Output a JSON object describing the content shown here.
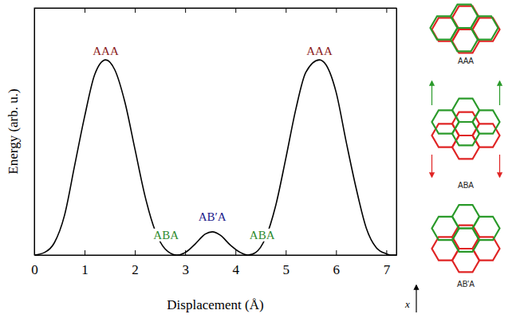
{
  "chart_data": {
    "type": "line",
    "x_label": "Displacement (Å)",
    "y_label": "Energy (arb. u.)",
    "xlim": [
      0,
      7.2
    ],
    "ylim": [
      0,
      1
    ],
    "xticks": [
      0,
      1,
      2,
      3,
      4,
      5,
      6,
      7
    ],
    "tick_labels": "x",
    "grid": false,
    "color": "#000000",
    "x": [
      0,
      0.2,
      0.4,
      0.6,
      0.8,
      1.0,
      1.2,
      1.42,
      1.6,
      1.8,
      2.0,
      2.2,
      2.4,
      2.6,
      2.83,
      3.0,
      3.2,
      3.4,
      3.54,
      3.7,
      3.9,
      4.1,
      4.25,
      4.4,
      4.6,
      4.8,
      5.0,
      5.2,
      5.4,
      5.67,
      5.8,
      6.0,
      6.2,
      6.4,
      6.6,
      6.8,
      7.0,
      7.09,
      7.2
    ],
    "values": [
      0,
      0.01,
      0.05,
      0.16,
      0.36,
      0.56,
      0.73,
      0.79,
      0.75,
      0.62,
      0.43,
      0.24,
      0.1,
      0.025,
      0,
      0.01,
      0.045,
      0.085,
      0.094,
      0.08,
      0.04,
      0.01,
      0,
      0.01,
      0.07,
      0.2,
      0.39,
      0.59,
      0.74,
      0.79,
      0.77,
      0.66,
      0.46,
      0.27,
      0.11,
      0.03,
      0.005,
      0,
      0
    ],
    "annotations": [
      {
        "text": "AAA",
        "x": 1.42,
        "y": 0.81,
        "color": "#8b1a1a"
      },
      {
        "text": "ABA",
        "x": 2.62,
        "y": 0.065,
        "color": "#2e8b2e"
      },
      {
        "text": "AB′A",
        "x": 3.54,
        "y": 0.14,
        "color": "#1a1a8b"
      },
      {
        "text": "ABA",
        "x": 4.53,
        "y": 0.065,
        "color": "#2e8b2e"
      },
      {
        "text": "AAA",
        "x": 5.67,
        "y": 0.81,
        "color": "#8b1a1a"
      }
    ]
  },
  "diagram": {
    "panels": [
      {
        "label": "AAA"
      },
      {
        "label": "ABA"
      },
      {
        "label": "AB'A"
      }
    ],
    "axis_label": "x"
  }
}
